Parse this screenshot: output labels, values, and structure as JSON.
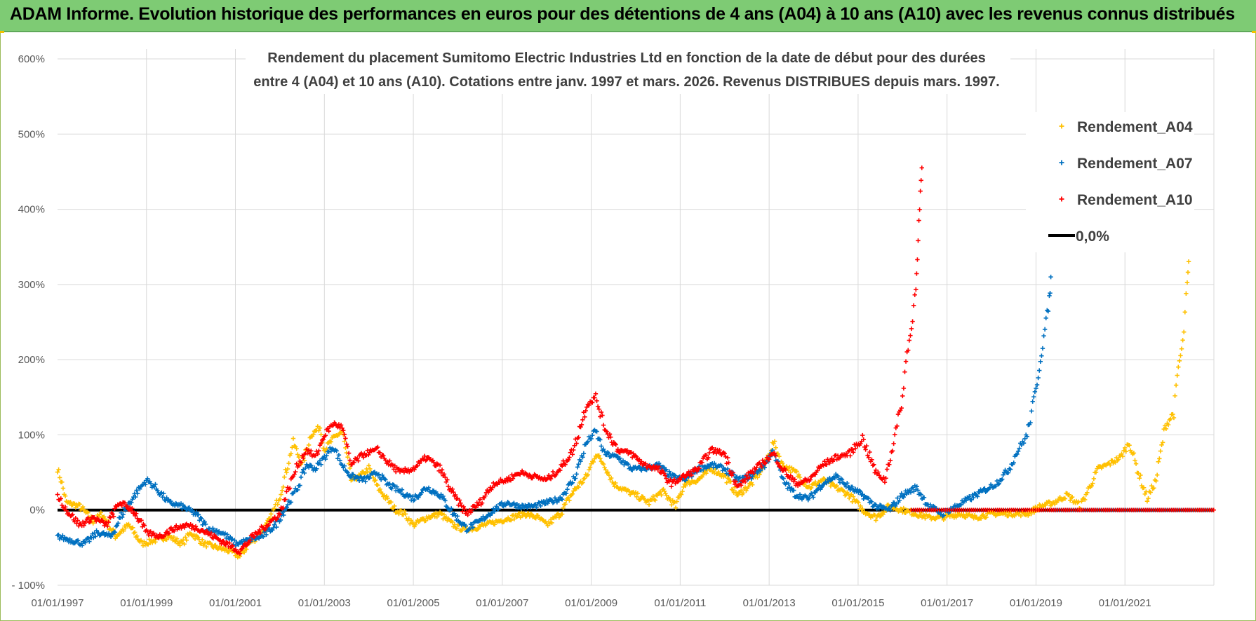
{
  "header": {
    "title": "ADAM Informe. Evolution historique des performances en euros pour des détentions de 4 ans (A04) à 10 ans (A10) avec les revenus connus distribués"
  },
  "colors": {
    "header_bg": "#7ecb74",
    "a04": "#ffc000",
    "a07": "#0070c0",
    "a10": "#ff0000",
    "zero": "#000000",
    "grid": "#d9d9d9"
  },
  "chart_data": {
    "type": "scatter",
    "title_lines": [
      "Rendement du placement Sumitomo Electric Industries Ltd en fonction de la date de début pour des durées",
      "entre 4 (A04) et 10 ans (A10).  Cotations entre janv. 1997 et mars. 2026. Revenus DISTRIBUES depuis mars. 1997."
    ],
    "x_start_year": 1997,
    "x_end_year": 2023,
    "x_tick_labels": [
      "01/01/1997",
      "01/01/1999",
      "01/01/2001",
      "01/01/2003",
      "01/01/2005",
      "01/01/2007",
      "01/01/2009",
      "01/01/2011",
      "01/01/2013",
      "01/01/2015",
      "01/01/2017",
      "01/01/2019",
      "01/01/2021"
    ],
    "y_tick_labels": [
      "- 100%",
      "0%",
      "100%",
      "200%",
      "300%",
      "400%",
      "500%",
      "600%"
    ],
    "ylim": [
      -100,
      600
    ],
    "y_ticks": [
      -100,
      0,
      100,
      200,
      300,
      400,
      500,
      600
    ],
    "legend": [
      {
        "name": "Rendement_A04",
        "key": "a04"
      },
      {
        "name": "Rendement_A07",
        "key": "a07"
      },
      {
        "name": "Rendement_A10",
        "key": "a10"
      },
      {
        "name": "0,0%",
        "key": "zero"
      }
    ],
    "series": [
      {
        "name": "Rendement_A04",
        "color_key": "a04",
        "points": [
          [
            1997.0,
            55
          ],
          [
            1997.1,
            35
          ],
          [
            1997.2,
            10
          ],
          [
            1997.5,
            5
          ],
          [
            1997.8,
            -15
          ],
          [
            1998.0,
            -5
          ],
          [
            1998.3,
            -35
          ],
          [
            1998.6,
            -20
          ],
          [
            1998.9,
            -45
          ],
          [
            1999.2,
            -40
          ],
          [
            1999.5,
            -35
          ],
          [
            1999.8,
            -45
          ],
          [
            2000.0,
            -30
          ],
          [
            2000.3,
            -45
          ],
          [
            2000.6,
            -50
          ],
          [
            2000.9,
            -55
          ],
          [
            2001.1,
            -62
          ],
          [
            2001.3,
            -45
          ],
          [
            2001.6,
            -30
          ],
          [
            2001.8,
            -10
          ],
          [
            2002.0,
            20
          ],
          [
            2002.2,
            65
          ],
          [
            2002.3,
            90
          ],
          [
            2002.5,
            60
          ],
          [
            2002.7,
            100
          ],
          [
            2002.9,
            110
          ],
          [
            2003.0,
            80
          ],
          [
            2003.2,
            95
          ],
          [
            2003.4,
            105
          ],
          [
            2003.6,
            40
          ],
          [
            2003.8,
            45
          ],
          [
            2004.0,
            55
          ],
          [
            2004.2,
            30
          ],
          [
            2004.4,
            15
          ],
          [
            2004.6,
            0
          ],
          [
            2004.8,
            -5
          ],
          [
            2005.0,
            -20
          ],
          [
            2005.3,
            -10
          ],
          [
            2005.6,
            -5
          ],
          [
            2005.9,
            -20
          ],
          [
            2006.1,
            -25
          ],
          [
            2006.3,
            -25
          ],
          [
            2006.6,
            -20
          ],
          [
            2006.9,
            -15
          ],
          [
            2007.2,
            -10
          ],
          [
            2007.5,
            -5
          ],
          [
            2007.8,
            -10
          ],
          [
            2008.0,
            -20
          ],
          [
            2008.3,
            -5
          ],
          [
            2008.6,
            25
          ],
          [
            2008.9,
            45
          ],
          [
            2009.1,
            75
          ],
          [
            2009.3,
            60
          ],
          [
            2009.5,
            35
          ],
          [
            2009.8,
            25
          ],
          [
            2010.0,
            20
          ],
          [
            2010.3,
            10
          ],
          [
            2010.6,
            25
          ],
          [
            2010.9,
            5
          ],
          [
            2011.1,
            35
          ],
          [
            2011.4,
            40
          ],
          [
            2011.7,
            55
          ],
          [
            2012.0,
            45
          ],
          [
            2012.3,
            20
          ],
          [
            2012.6,
            35
          ],
          [
            2012.9,
            60
          ],
          [
            2013.1,
            90
          ],
          [
            2013.3,
            60
          ],
          [
            2013.6,
            50
          ],
          [
            2013.9,
            30
          ],
          [
            2014.2,
            40
          ],
          [
            2014.5,
            30
          ],
          [
            2014.8,
            20
          ],
          [
            2015.1,
            0
          ],
          [
            2015.4,
            -10
          ],
          [
            2015.7,
            5
          ],
          [
            2016.0,
            0
          ],
          [
            2016.3,
            -5
          ],
          [
            2016.6,
            -10
          ],
          [
            2016.9,
            -10
          ],
          [
            2017.3,
            -5
          ],
          [
            2017.6,
            -10
          ],
          [
            2018.0,
            -5
          ],
          [
            2018.4,
            -5
          ],
          [
            2018.8,
            -5
          ],
          [
            2019.1,
            5
          ],
          [
            2019.4,
            10
          ],
          [
            2019.7,
            20
          ],
          [
            2020.0,
            5
          ],
          [
            2020.2,
            30
          ],
          [
            2020.4,
            55
          ],
          [
            2020.6,
            60
          ],
          [
            2020.9,
            70
          ],
          [
            2021.1,
            90
          ],
          [
            2021.3,
            50
          ],
          [
            2021.5,
            15
          ],
          [
            2021.7,
            40
          ],
          [
            2021.9,
            110
          ],
          [
            2022.1,
            130
          ],
          [
            2022.2,
            190
          ],
          [
            2022.3,
            220
          ],
          [
            2022.4,
            300
          ],
          [
            2022.45,
            340
          ]
        ]
      },
      {
        "name": "Rendement_A07",
        "color_key": "a07",
        "points": [
          [
            1997.0,
            -35
          ],
          [
            1997.3,
            -40
          ],
          [
            1997.6,
            -45
          ],
          [
            1997.9,
            -30
          ],
          [
            1998.2,
            -35
          ],
          [
            1998.5,
            0
          ],
          [
            1998.8,
            25
          ],
          [
            1999.0,
            40
          ],
          [
            1999.2,
            30
          ],
          [
            1999.5,
            10
          ],
          [
            1999.8,
            5
          ],
          [
            2000.1,
            -5
          ],
          [
            2000.4,
            -25
          ],
          [
            2000.7,
            -30
          ],
          [
            2001.0,
            -45
          ],
          [
            2001.3,
            -40
          ],
          [
            2001.6,
            -35
          ],
          [
            2001.9,
            -20
          ],
          [
            2002.2,
            10
          ],
          [
            2002.4,
            30
          ],
          [
            2002.6,
            60
          ],
          [
            2002.8,
            55
          ],
          [
            2003.0,
            70
          ],
          [
            2003.2,
            85
          ],
          [
            2003.4,
            60
          ],
          [
            2003.6,
            45
          ],
          [
            2003.9,
            40
          ],
          [
            2004.2,
            50
          ],
          [
            2004.4,
            35
          ],
          [
            2004.7,
            25
          ],
          [
            2005.0,
            15
          ],
          [
            2005.3,
            30
          ],
          [
            2005.6,
            20
          ],
          [
            2005.9,
            -5
          ],
          [
            2006.2,
            -25
          ],
          [
            2006.5,
            -15
          ],
          [
            2006.8,
            0
          ],
          [
            2007.1,
            10
          ],
          [
            2007.4,
            5
          ],
          [
            2007.7,
            5
          ],
          [
            2008.0,
            10
          ],
          [
            2008.3,
            15
          ],
          [
            2008.6,
            40
          ],
          [
            2008.9,
            90
          ],
          [
            2009.1,
            105
          ],
          [
            2009.3,
            75
          ],
          [
            2009.6,
            70
          ],
          [
            2009.9,
            55
          ],
          [
            2010.2,
            55
          ],
          [
            2010.5,
            60
          ],
          [
            2010.8,
            45
          ],
          [
            2011.1,
            40
          ],
          [
            2011.4,
            55
          ],
          [
            2011.7,
            60
          ],
          [
            2012.0,
            55
          ],
          [
            2012.3,
            40
          ],
          [
            2012.6,
            45
          ],
          [
            2012.9,
            60
          ],
          [
            2013.1,
            80
          ],
          [
            2013.3,
            40
          ],
          [
            2013.6,
            20
          ],
          [
            2013.9,
            15
          ],
          [
            2014.2,
            35
          ],
          [
            2014.5,
            45
          ],
          [
            2014.8,
            30
          ],
          [
            2015.1,
            20
          ],
          [
            2015.4,
            5
          ],
          [
            2015.7,
            0
          ],
          [
            2016.0,
            20
          ],
          [
            2016.3,
            30
          ],
          [
            2016.6,
            5
          ],
          [
            2016.9,
            -5
          ],
          [
            2017.2,
            5
          ],
          [
            2017.5,
            15
          ],
          [
            2017.8,
            25
          ],
          [
            2018.1,
            35
          ],
          [
            2018.4,
            55
          ],
          [
            2018.6,
            80
          ],
          [
            2018.8,
            100
          ],
          [
            2019.0,
            160
          ],
          [
            2019.1,
            200
          ],
          [
            2019.2,
            240
          ],
          [
            2019.3,
            280
          ],
          [
            2019.35,
            320
          ]
        ]
      },
      {
        "name": "Rendement_A10",
        "color_key": "a10",
        "points": [
          [
            1997.0,
            20
          ],
          [
            1997.2,
            0
          ],
          [
            1997.5,
            -20
          ],
          [
            1997.8,
            -10
          ],
          [
            1998.1,
            -20
          ],
          [
            1998.4,
            10
          ],
          [
            1998.7,
            0
          ],
          [
            1999.0,
            -30
          ],
          [
            1999.3,
            -35
          ],
          [
            1999.6,
            -25
          ],
          [
            1999.9,
            -20
          ],
          [
            2000.2,
            -25
          ],
          [
            2000.5,
            -35
          ],
          [
            2000.8,
            -45
          ],
          [
            2001.1,
            -55
          ],
          [
            2001.4,
            -35
          ],
          [
            2001.7,
            -20
          ],
          [
            2002.0,
            -5
          ],
          [
            2002.2,
            30
          ],
          [
            2002.4,
            60
          ],
          [
            2002.6,
            80
          ],
          [
            2002.8,
            70
          ],
          [
            2003.0,
            100
          ],
          [
            2003.2,
            115
          ],
          [
            2003.4,
            110
          ],
          [
            2003.6,
            60
          ],
          [
            2003.9,
            75
          ],
          [
            2004.2,
            80
          ],
          [
            2004.4,
            65
          ],
          [
            2004.7,
            50
          ],
          [
            2005.0,
            55
          ],
          [
            2005.3,
            70
          ],
          [
            2005.6,
            55
          ],
          [
            2005.9,
            20
          ],
          [
            2006.2,
            -5
          ],
          [
            2006.5,
            10
          ],
          [
            2006.8,
            35
          ],
          [
            2007.1,
            40
          ],
          [
            2007.4,
            50
          ],
          [
            2007.7,
            45
          ],
          [
            2008.0,
            40
          ],
          [
            2008.3,
            55
          ],
          [
            2008.6,
            80
          ],
          [
            2008.9,
            140
          ],
          [
            2009.1,
            150
          ],
          [
            2009.3,
            110
          ],
          [
            2009.6,
            80
          ],
          [
            2009.9,
            75
          ],
          [
            2010.2,
            60
          ],
          [
            2010.5,
            55
          ],
          [
            2010.8,
            35
          ],
          [
            2011.1,
            45
          ],
          [
            2011.4,
            55
          ],
          [
            2011.7,
            80
          ],
          [
            2012.0,
            75
          ],
          [
            2012.3,
            30
          ],
          [
            2012.6,
            50
          ],
          [
            2012.9,
            65
          ],
          [
            2013.1,
            75
          ],
          [
            2013.3,
            55
          ],
          [
            2013.6,
            35
          ],
          [
            2013.9,
            40
          ],
          [
            2014.2,
            60
          ],
          [
            2014.5,
            70
          ],
          [
            2014.8,
            75
          ],
          [
            2015.1,
            95
          ],
          [
            2015.4,
            50
          ],
          [
            2015.6,
            40
          ],
          [
            2015.8,
            90
          ],
          [
            2016.0,
            150
          ],
          [
            2016.1,
            210
          ],
          [
            2016.2,
            240
          ],
          [
            2016.3,
            300
          ],
          [
            2016.35,
            360
          ],
          [
            2016.4,
            420
          ],
          [
            2016.45,
            470
          ]
        ]
      }
    ],
    "a10_flat": {
      "from": 2016.2,
      "to": 2023.0,
      "value": 0
    },
    "a07_flat": {
      "from": 2019.4,
      "to": 2023.0,
      "value": 0
    },
    "a04_flat": {
      "from": 2022.5,
      "to": 2023.0,
      "value": 0
    }
  }
}
